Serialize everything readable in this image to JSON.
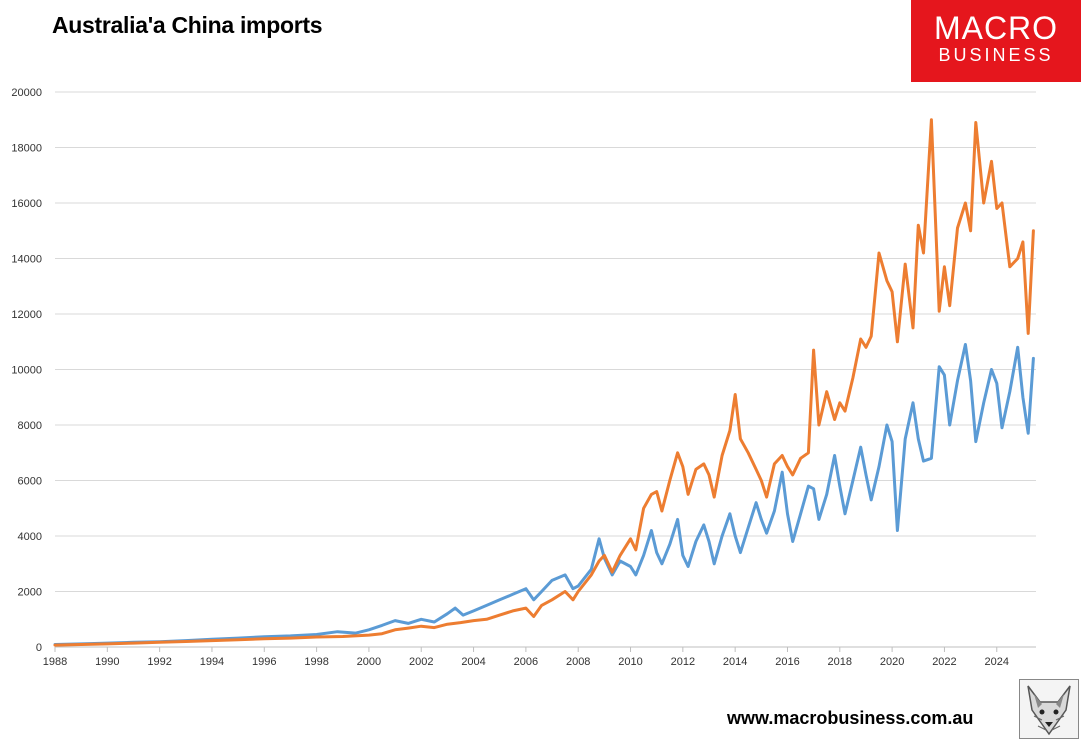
{
  "header": {
    "title": "Australia'a China imports"
  },
  "logo": {
    "line1": "MACRO",
    "line2": "BUSINESS",
    "color": "#e5161d"
  },
  "footer": {
    "url": "www.macrobusiness.com.au"
  },
  "mascot": {
    "icon": "wolf-icon"
  },
  "chart_data": {
    "type": "line",
    "title": "Australia'a China imports",
    "xlabel": "",
    "ylabel": "",
    "xlim": [
      1988,
      2025.5
    ],
    "ylim": [
      0,
      20000
    ],
    "x_ticks": [
      "1988",
      "1990",
      "1992",
      "1994",
      "1996",
      "1998",
      "2000",
      "2002",
      "2004",
      "2006",
      "2008",
      "2010",
      "2012",
      "2014",
      "2016",
      "2018",
      "2020",
      "2022",
      "2024"
    ],
    "y_ticks": [
      "0",
      "2000",
      "4000",
      "6000",
      "8000",
      "10000",
      "12000",
      "14000",
      "16000",
      "18000",
      "20000"
    ],
    "grid": "horizontal",
    "legend": "none",
    "series": [
      {
        "color": "#5b9bd5",
        "points": [
          [
            1988,
            90
          ],
          [
            1989,
            110
          ],
          [
            1990,
            140
          ],
          [
            1991,
            170
          ],
          [
            1992,
            190
          ],
          [
            1993,
            230
          ],
          [
            1994,
            280
          ],
          [
            1995,
            320
          ],
          [
            1996,
            370
          ],
          [
            1997,
            400
          ],
          [
            1998,
            450
          ],
          [
            1998.8,
            550
          ],
          [
            1999.5,
            500
          ],
          [
            2000,
            620
          ],
          [
            2000.5,
            780
          ],
          [
            2001,
            950
          ],
          [
            2001.5,
            850
          ],
          [
            2002,
            1000
          ],
          [
            2002.5,
            900
          ],
          [
            2003,
            1200
          ],
          [
            2003.3,
            1400
          ],
          [
            2003.6,
            1150
          ],
          [
            2004,
            1300
          ],
          [
            2004.5,
            1500
          ],
          [
            2005,
            1700
          ],
          [
            2005.5,
            1900
          ],
          [
            2006,
            2100
          ],
          [
            2006.3,
            1700
          ],
          [
            2006.6,
            2000
          ],
          [
            2007,
            2400
          ],
          [
            2007.5,
            2600
          ],
          [
            2007.8,
            2100
          ],
          [
            2008,
            2200
          ],
          [
            2008.5,
            2800
          ],
          [
            2008.8,
            3900
          ],
          [
            2009,
            3200
          ],
          [
            2009.3,
            2600
          ],
          [
            2009.6,
            3100
          ],
          [
            2010,
            2900
          ],
          [
            2010.2,
            2600
          ],
          [
            2010.5,
            3300
          ],
          [
            2010.8,
            4200
          ],
          [
            2011,
            3400
          ],
          [
            2011.2,
            3000
          ],
          [
            2011.5,
            3700
          ],
          [
            2011.8,
            4600
          ],
          [
            2012,
            3300
          ],
          [
            2012.2,
            2900
          ],
          [
            2012.5,
            3800
          ],
          [
            2012.8,
            4400
          ],
          [
            2013,
            3800
          ],
          [
            2013.2,
            3000
          ],
          [
            2013.5,
            4000
          ],
          [
            2013.8,
            4800
          ],
          [
            2014,
            4000
          ],
          [
            2014.2,
            3400
          ],
          [
            2014.5,
            4300
          ],
          [
            2014.8,
            5200
          ],
          [
            2015,
            4600
          ],
          [
            2015.2,
            4100
          ],
          [
            2015.5,
            4900
          ],
          [
            2015.8,
            6300
          ],
          [
            2016,
            4800
          ],
          [
            2016.2,
            3800
          ],
          [
            2016.5,
            4800
          ],
          [
            2016.8,
            5800
          ],
          [
            2017,
            5700
          ],
          [
            2017.2,
            4600
          ],
          [
            2017.5,
            5500
          ],
          [
            2017.8,
            6900
          ],
          [
            2018,
            5800
          ],
          [
            2018.2,
            4800
          ],
          [
            2018.5,
            6000
          ],
          [
            2018.8,
            7200
          ],
          [
            2019,
            6200
          ],
          [
            2019.2,
            5300
          ],
          [
            2019.5,
            6500
          ],
          [
            2019.8,
            8000
          ],
          [
            2020,
            7400
          ],
          [
            2020.2,
            4200
          ],
          [
            2020.5,
            7500
          ],
          [
            2020.8,
            8800
          ],
          [
            2021,
            7500
          ],
          [
            2021.2,
            6700
          ],
          [
            2021.5,
            6800
          ],
          [
            2021.8,
            10100
          ],
          [
            2022,
            9800
          ],
          [
            2022.2,
            8000
          ],
          [
            2022.5,
            9600
          ],
          [
            2022.8,
            10900
          ],
          [
            2023,
            9600
          ],
          [
            2023.2,
            7400
          ],
          [
            2023.5,
            8800
          ],
          [
            2023.8,
            10000
          ],
          [
            2024,
            9500
          ],
          [
            2024.2,
            7900
          ],
          [
            2024.5,
            9200
          ],
          [
            2024.8,
            10800
          ],
          [
            2025,
            9000
          ],
          [
            2025.2,
            7700
          ],
          [
            2025.4,
            10400
          ]
        ]
      },
      {
        "color": "#ed7d31",
        "points": [
          [
            1988,
            70
          ],
          [
            1989,
            90
          ],
          [
            1990,
            110
          ],
          [
            1991,
            140
          ],
          [
            1992,
            170
          ],
          [
            1993,
            200
          ],
          [
            1994,
            230
          ],
          [
            1995,
            260
          ],
          [
            1996,
            300
          ],
          [
            1997,
            320
          ],
          [
            1998,
            360
          ],
          [
            1999,
            380
          ],
          [
            2000,
            430
          ],
          [
            2000.5,
            480
          ],
          [
            2001,
            620
          ],
          [
            2001.5,
            680
          ],
          [
            2002,
            750
          ],
          [
            2002.5,
            700
          ],
          [
            2003,
            820
          ],
          [
            2003.5,
            880
          ],
          [
            2004,
            950
          ],
          [
            2004.5,
            1000
          ],
          [
            2005,
            1150
          ],
          [
            2005.5,
            1300
          ],
          [
            2006,
            1400
          ],
          [
            2006.3,
            1100
          ],
          [
            2006.6,
            1500
          ],
          [
            2007,
            1700
          ],
          [
            2007.5,
            2000
          ],
          [
            2007.8,
            1700
          ],
          [
            2008,
            2000
          ],
          [
            2008.5,
            2600
          ],
          [
            2008.8,
            3100
          ],
          [
            2009,
            3300
          ],
          [
            2009.3,
            2700
          ],
          [
            2009.6,
            3300
          ],
          [
            2010,
            3900
          ],
          [
            2010.2,
            3500
          ],
          [
            2010.5,
            5000
          ],
          [
            2010.8,
            5500
          ],
          [
            2011,
            5600
          ],
          [
            2011.2,
            4900
          ],
          [
            2011.5,
            6000
          ],
          [
            2011.8,
            7000
          ],
          [
            2012,
            6500
          ],
          [
            2012.2,
            5500
          ],
          [
            2012.5,
            6400
          ],
          [
            2012.8,
            6600
          ],
          [
            2013,
            6200
          ],
          [
            2013.2,
            5400
          ],
          [
            2013.5,
            6900
          ],
          [
            2013.8,
            7800
          ],
          [
            2014,
            9100
          ],
          [
            2014.2,
            7500
          ],
          [
            2014.5,
            7000
          ],
          [
            2014.8,
            6400
          ],
          [
            2015,
            6000
          ],
          [
            2015.2,
            5400
          ],
          [
            2015.5,
            6600
          ],
          [
            2015.8,
            6900
          ],
          [
            2016,
            6500
          ],
          [
            2016.2,
            6200
          ],
          [
            2016.5,
            6800
          ],
          [
            2016.8,
            7000
          ],
          [
            2017,
            10700
          ],
          [
            2017.2,
            8000
          ],
          [
            2017.5,
            9200
          ],
          [
            2017.8,
            8200
          ],
          [
            2018,
            8800
          ],
          [
            2018.2,
            8500
          ],
          [
            2018.5,
            9700
          ],
          [
            2018.8,
            11100
          ],
          [
            2019,
            10800
          ],
          [
            2019.2,
            11200
          ],
          [
            2019.5,
            14200
          ],
          [
            2019.8,
            13200
          ],
          [
            2020,
            12800
          ],
          [
            2020.2,
            11000
          ],
          [
            2020.5,
            13800
          ],
          [
            2020.8,
            11500
          ],
          [
            2021,
            15200
          ],
          [
            2021.2,
            14200
          ],
          [
            2021.5,
            19000
          ],
          [
            2021.8,
            12100
          ],
          [
            2022,
            13700
          ],
          [
            2022.2,
            12300
          ],
          [
            2022.5,
            15100
          ],
          [
            2022.8,
            16000
          ],
          [
            2023,
            15000
          ],
          [
            2023.2,
            18900
          ],
          [
            2023.5,
            16000
          ],
          [
            2023.8,
            17500
          ],
          [
            2024,
            15800
          ],
          [
            2024.2,
            16000
          ],
          [
            2024.5,
            13700
          ],
          [
            2024.8,
            14000
          ],
          [
            2025,
            14600
          ],
          [
            2025.2,
            11300
          ],
          [
            2025.4,
            15000
          ]
        ]
      }
    ]
  }
}
